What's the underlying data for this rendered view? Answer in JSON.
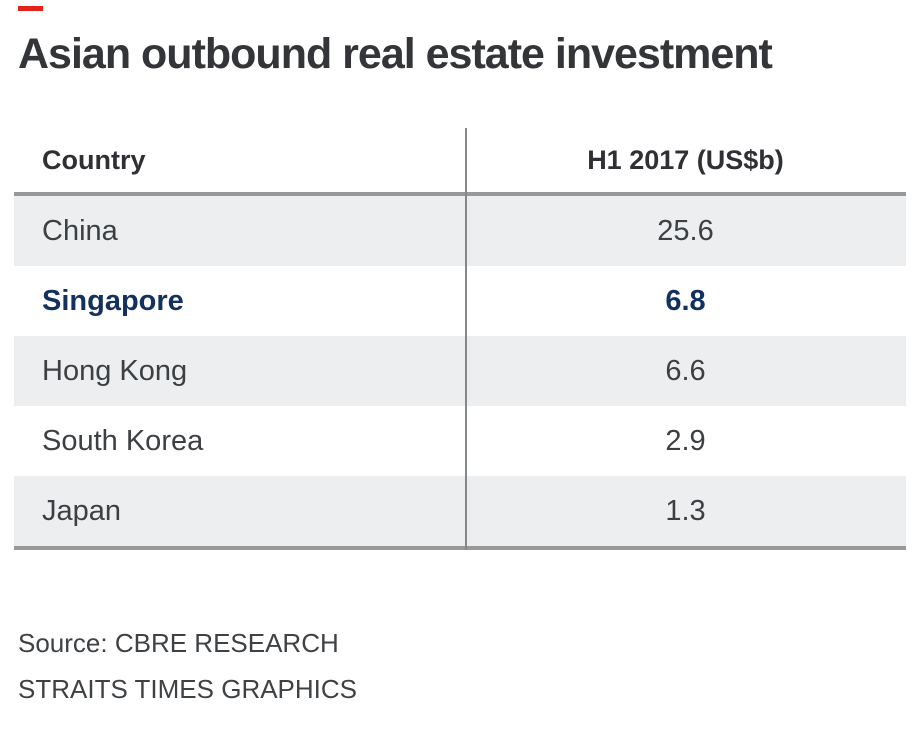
{
  "accent_color": "#e2231a",
  "title": "Asian outbound real estate investment",
  "table": {
    "columns": [
      {
        "label": "Country"
      },
      {
        "label": "H1 2017 (US$b)"
      }
    ],
    "rows": [
      {
        "country": "China",
        "value": "25.6",
        "highlight": false
      },
      {
        "country": "Singapore",
        "value": "6.8",
        "highlight": true
      },
      {
        "country": "Hong Kong",
        "value": "6.6",
        "highlight": false
      },
      {
        "country": "South Korea",
        "value": "2.9",
        "highlight": false
      },
      {
        "country": "Japan",
        "value": "1.3",
        "highlight": false
      }
    ],
    "highlight_color": "#12315e",
    "stripe_color": "#eceef0"
  },
  "footer": {
    "source_line": "Source: CBRE RESEARCH",
    "credit_line": "STRAITS TIMES GRAPHICS"
  },
  "chart_data": {
    "type": "table",
    "title": "Asian outbound real estate investment",
    "columns": [
      "Country",
      "H1 2017 (US$b)"
    ],
    "rows": [
      [
        "China",
        25.6
      ],
      [
        "Singapore",
        6.8
      ],
      [
        "Hong Kong",
        6.6
      ],
      [
        "South Korea",
        2.9
      ],
      [
        "Japan",
        1.3
      ]
    ],
    "highlighted_row": "Singapore",
    "unit": "US$ billions",
    "period": "H1 2017",
    "source": "Source: CBRE RESEARCH",
    "credit": "STRAITS TIMES GRAPHICS"
  }
}
